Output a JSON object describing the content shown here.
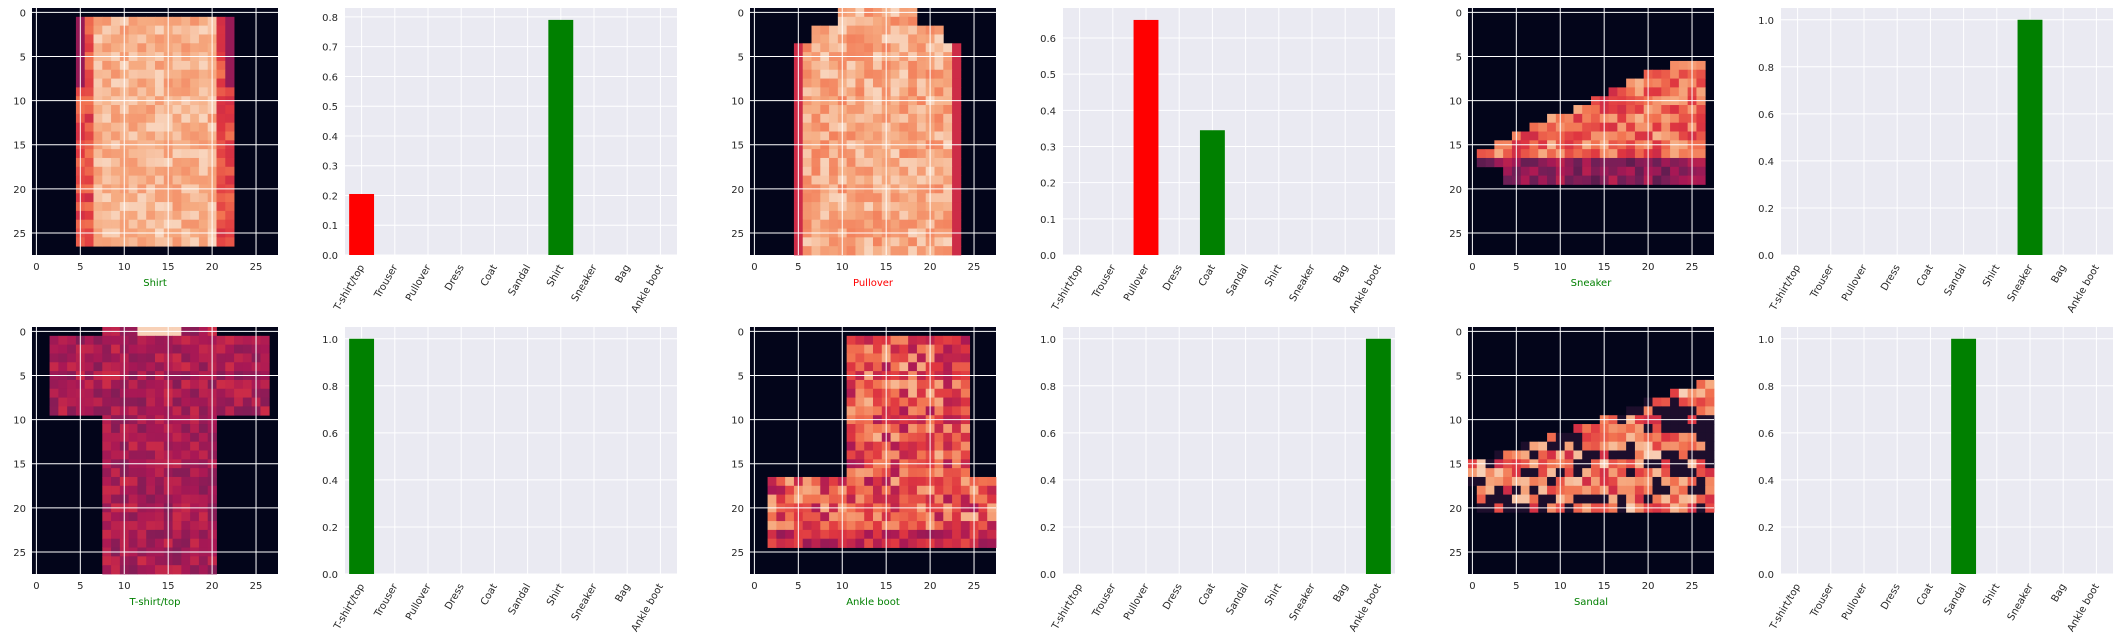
{
  "chart_data": {
    "type": "image_and_bar_grid",
    "classes": [
      "T-shirt/top",
      "Trouser",
      "Pullover",
      "Dress",
      "Coat",
      "Sandal",
      "Shirt",
      "Sneaker",
      "Bag",
      "Ankle boot"
    ],
    "image_axis": {
      "xticks": [
        0,
        5,
        10,
        15,
        20,
        25
      ],
      "yticks": [
        0,
        5,
        10,
        15,
        20,
        25
      ],
      "xlim": [
        -0.5,
        27.5
      ],
      "ylim": [
        27.5,
        -0.5
      ]
    },
    "colors": {
      "correct": "#008000",
      "wrong": "#ff0000",
      "axes_bg": "#eaeaf2",
      "grid": "#ffffff",
      "image_bg": "#03051a",
      "tick_text": "#262626"
    },
    "panels": [
      {
        "image": {
          "item": "shirt",
          "label": "Shirt",
          "label_color": "#008000"
        },
        "bar": {
          "values": [
            0.205,
            0,
            0,
            0,
            0,
            0,
            0.79,
            0,
            0,
            0
          ],
          "bar_colors": [
            "#ff0000",
            "#808080",
            "#808080",
            "#808080",
            "#808080",
            "#808080",
            "#008000",
            "#808080",
            "#808080",
            "#808080"
          ],
          "ylim": [
            0,
            0.83
          ],
          "yticks": [
            "0.0",
            "0.1",
            "0.2",
            "0.3",
            "0.4",
            "0.5",
            "0.6",
            "0.7",
            "0.8"
          ]
        }
      },
      {
        "image": {
          "item": "pullover",
          "label": "Pullover",
          "label_color": "#ff0000"
        },
        "bar": {
          "values": [
            0,
            0,
            0.65,
            0,
            0.345,
            0,
            0,
            0,
            0,
            0
          ],
          "bar_colors": [
            "#808080",
            "#808080",
            "#ff0000",
            "#808080",
            "#008000",
            "#808080",
            "#808080",
            "#808080",
            "#808080",
            "#808080"
          ],
          "ylim": [
            0,
            0.683
          ],
          "yticks": [
            "0.0",
            "0.1",
            "0.2",
            "0.3",
            "0.4",
            "0.5",
            "0.6"
          ]
        }
      },
      {
        "image": {
          "item": "sneaker",
          "label": "Sneaker",
          "label_color": "#008000"
        },
        "bar": {
          "values": [
            0,
            0,
            0,
            0,
            0,
            0,
            0,
            1.0,
            0,
            0
          ],
          "bar_colors": [
            "#808080",
            "#808080",
            "#808080",
            "#808080",
            "#808080",
            "#808080",
            "#808080",
            "#008000",
            "#808080",
            "#808080"
          ],
          "ylim": [
            0,
            1.05
          ],
          "yticks": [
            "0.0",
            "0.2",
            "0.4",
            "0.6",
            "0.8",
            "1.0"
          ]
        }
      },
      {
        "image": {
          "item": "tshirt",
          "label": "T-shirt/top",
          "label_color": "#008000"
        },
        "bar": {
          "values": [
            1.0,
            0,
            0,
            0,
            0,
            0,
            0,
            0,
            0,
            0
          ],
          "bar_colors": [
            "#008000",
            "#808080",
            "#808080",
            "#808080",
            "#808080",
            "#808080",
            "#808080",
            "#808080",
            "#808080",
            "#808080"
          ],
          "ylim": [
            0,
            1.05
          ],
          "yticks": [
            "0.0",
            "0.2",
            "0.4",
            "0.6",
            "0.8",
            "1.0"
          ]
        }
      },
      {
        "image": {
          "item": "boot",
          "label": "Ankle boot",
          "label_color": "#008000"
        },
        "bar": {
          "values": [
            0,
            0,
            0,
            0,
            0,
            0,
            0,
            0,
            0,
            1.0
          ],
          "bar_colors": [
            "#808080",
            "#808080",
            "#808080",
            "#808080",
            "#808080",
            "#808080",
            "#808080",
            "#808080",
            "#808080",
            "#008000"
          ],
          "ylim": [
            0,
            1.05
          ],
          "yticks": [
            "0.0",
            "0.2",
            "0.4",
            "0.6",
            "0.8",
            "1.0"
          ]
        }
      },
      {
        "image": {
          "item": "sandal",
          "label": "Sandal",
          "label_color": "#008000"
        },
        "bar": {
          "values": [
            0,
            0,
            0,
            0,
            0,
            1.0,
            0,
            0,
            0,
            0
          ],
          "bar_colors": [
            "#808080",
            "#808080",
            "#808080",
            "#808080",
            "#808080",
            "#008000",
            "#808080",
            "#808080",
            "#808080",
            "#808080"
          ],
          "ylim": [
            0,
            1.05
          ],
          "yticks": [
            "0.0",
            "0.2",
            "0.4",
            "0.6",
            "0.8",
            "1.0"
          ]
        }
      }
    ]
  }
}
